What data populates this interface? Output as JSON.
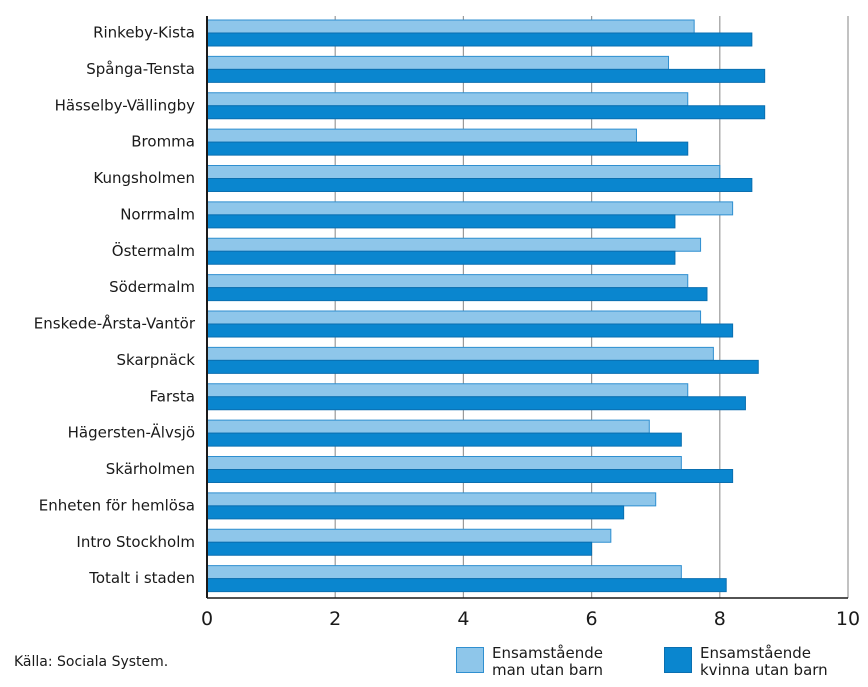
{
  "chart_data": {
    "type": "bar",
    "orientation": "horizontal",
    "categories": [
      "Rinkeby-Kista",
      "Spånga-Tensta",
      "Hässelby-Vällingby",
      "Bromma",
      "Kungsholmen",
      "Norrmalm",
      "Östermalm",
      "Södermalm",
      "Enskede-Årsta-Vantör",
      "Skarpnäck",
      "Farsta",
      "Hägersten-Älvsjö",
      "Skärholmen",
      "Enheten för hemlösa",
      "Intro Stockholm",
      "Totalt i staden"
    ],
    "series": [
      {
        "name": "Ensamstående man utan barn",
        "color": "#8ec6ea",
        "border": "#2f8fd0",
        "values": [
          7.6,
          7.2,
          7.5,
          6.7,
          8.0,
          8.2,
          7.7,
          7.5,
          7.7,
          7.9,
          7.5,
          6.9,
          7.4,
          7.0,
          6.3,
          7.4
        ]
      },
      {
        "name": "Ensamstående kvinna utan barn",
        "color": "#0a86cf",
        "border": "#0a6fb0",
        "values": [
          8.5,
          8.7,
          8.7,
          7.5,
          8.5,
          7.3,
          7.3,
          7.8,
          8.2,
          8.6,
          8.4,
          7.4,
          8.2,
          6.5,
          6.0,
          8.1
        ]
      }
    ],
    "xlim": [
      0,
      10
    ],
    "xticks": [
      "0",
      "2",
      "4",
      "6",
      "8",
      "10"
    ],
    "grid": true,
    "legend_position": "bottom-right",
    "source": "Källa: Sociala System."
  },
  "legend": {
    "man_label": "Ensamstående\nman utan barn",
    "woman_label": "Ensamstående\nkvinna utan barn"
  }
}
